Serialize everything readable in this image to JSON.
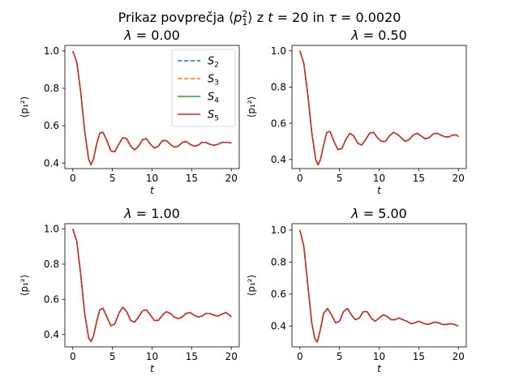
{
  "figure": {
    "title_prefix": "Prikaz povprečja ⟨",
    "title_mid": "⟩  z ",
    "title_t": "t",
    "title_eq1": " = 20 in ",
    "title_tau": "τ",
    "title_eq2": " = 0.0020"
  },
  "legend": {
    "entries": [
      {
        "label": "S",
        "sub": "2",
        "color": "#1f77b4",
        "style": "dashed"
      },
      {
        "label": "S",
        "sub": "3",
        "color": "#ff7f0e",
        "style": "dashed"
      },
      {
        "label": "S",
        "sub": "4",
        "color": "#2ca02c",
        "style": "solid"
      },
      {
        "label": "S",
        "sub": "5",
        "color": "#d62728",
        "style": "solid"
      }
    ]
  },
  "chart_data": [
    {
      "type": "line",
      "title_symbol": "λ",
      "title_value": " = 0.00",
      "xlabel": "t",
      "ylabel": "⟨p₁²⟩",
      "xlim": [
        -1,
        21
      ],
      "ylim": [
        0.37,
        1.03
      ],
      "xticks": [
        "0",
        "5",
        "10",
        "15",
        "20"
      ],
      "yticks": [
        "0.4",
        "0.6",
        "0.8",
        "1.0"
      ],
      "legend": "top-right",
      "x": [
        0,
        0.5,
        1.0,
        1.5,
        2.0,
        2.3,
        2.6,
        3.0,
        3.4,
        3.8,
        4.3,
        4.8,
        5.3,
        5.8,
        6.3,
        6.8,
        7.3,
        7.8,
        8.3,
        8.8,
        9.3,
        9.8,
        10.3,
        10.8,
        11.3,
        11.8,
        12.3,
        12.8,
        13.3,
        13.8,
        14.3,
        14.8,
        15.3,
        15.8,
        16.3,
        16.8,
        17.3,
        17.8,
        18.3,
        18.8,
        19.3,
        19.8,
        20.0
      ],
      "series": [
        {
          "name": "S_2",
          "values": [
            1.0,
            0.94,
            0.78,
            0.57,
            0.42,
            0.39,
            0.42,
            0.5,
            0.56,
            0.565,
            0.52,
            0.465,
            0.46,
            0.5,
            0.535,
            0.53,
            0.49,
            0.47,
            0.49,
            0.525,
            0.53,
            0.5,
            0.48,
            0.49,
            0.52,
            0.52,
            0.5,
            0.485,
            0.49,
            0.51,
            0.515,
            0.5,
            0.49,
            0.495,
            0.51,
            0.51,
            0.5,
            0.495,
            0.5,
            0.51,
            0.51,
            0.51,
            0.505
          ]
        },
        {
          "name": "S_3",
          "values": [
            1.0,
            0.94,
            0.78,
            0.57,
            0.42,
            0.39,
            0.42,
            0.5,
            0.56,
            0.565,
            0.52,
            0.465,
            0.46,
            0.5,
            0.535,
            0.53,
            0.49,
            0.47,
            0.49,
            0.525,
            0.53,
            0.5,
            0.48,
            0.49,
            0.52,
            0.52,
            0.5,
            0.485,
            0.49,
            0.51,
            0.515,
            0.5,
            0.49,
            0.495,
            0.51,
            0.51,
            0.5,
            0.495,
            0.5,
            0.51,
            0.51,
            0.51,
            0.505
          ]
        },
        {
          "name": "S_4",
          "values": [
            1.0,
            0.94,
            0.78,
            0.57,
            0.42,
            0.39,
            0.42,
            0.5,
            0.56,
            0.565,
            0.52,
            0.465,
            0.46,
            0.5,
            0.535,
            0.53,
            0.49,
            0.47,
            0.49,
            0.525,
            0.53,
            0.5,
            0.48,
            0.49,
            0.52,
            0.52,
            0.5,
            0.485,
            0.49,
            0.51,
            0.515,
            0.5,
            0.49,
            0.495,
            0.51,
            0.51,
            0.5,
            0.495,
            0.5,
            0.51,
            0.51,
            0.51,
            0.505
          ]
        },
        {
          "name": "S_5",
          "values": [
            1.0,
            0.94,
            0.78,
            0.57,
            0.42,
            0.39,
            0.42,
            0.5,
            0.56,
            0.565,
            0.52,
            0.465,
            0.46,
            0.5,
            0.535,
            0.53,
            0.49,
            0.47,
            0.49,
            0.525,
            0.53,
            0.5,
            0.48,
            0.49,
            0.52,
            0.52,
            0.5,
            0.485,
            0.49,
            0.51,
            0.515,
            0.5,
            0.49,
            0.495,
            0.51,
            0.51,
            0.5,
            0.495,
            0.5,
            0.51,
            0.51,
            0.51,
            0.505
          ]
        }
      ]
    },
    {
      "type": "line",
      "title_symbol": "λ",
      "title_value": " = 0.50",
      "xlabel": "t",
      "ylabel": "⟨p₁²⟩",
      "xlim": [
        -1,
        21
      ],
      "ylim": [
        0.35,
        1.03
      ],
      "xticks": [
        "0",
        "5",
        "10",
        "15",
        "20"
      ],
      "yticks": [
        "0.4",
        "0.6",
        "0.8",
        "1.0"
      ],
      "x": [
        0,
        0.5,
        1.0,
        1.5,
        2.0,
        2.3,
        2.6,
        3.0,
        3.4,
        3.8,
        4.3,
        4.8,
        5.3,
        5.8,
        6.3,
        6.8,
        7.3,
        7.8,
        8.3,
        8.8,
        9.3,
        9.8,
        10.3,
        10.8,
        11.3,
        11.8,
        12.3,
        12.8,
        13.3,
        13.8,
        14.3,
        14.8,
        15.3,
        15.8,
        16.3,
        16.8,
        17.3,
        17.8,
        18.3,
        18.8,
        19.3,
        19.8,
        20.0
      ],
      "series": [
        {
          "name": "S_2",
          "values": [
            1.0,
            0.93,
            0.76,
            0.55,
            0.4,
            0.37,
            0.4,
            0.48,
            0.55,
            0.555,
            0.5,
            0.455,
            0.46,
            0.51,
            0.545,
            0.53,
            0.49,
            0.48,
            0.51,
            0.545,
            0.55,
            0.52,
            0.5,
            0.5,
            0.53,
            0.55,
            0.54,
            0.52,
            0.5,
            0.51,
            0.535,
            0.545,
            0.53,
            0.515,
            0.52,
            0.54,
            0.545,
            0.535,
            0.525,
            0.525,
            0.535,
            0.535,
            0.525
          ]
        },
        {
          "name": "S_3",
          "values": [
            1.0,
            0.93,
            0.76,
            0.55,
            0.4,
            0.37,
            0.4,
            0.48,
            0.55,
            0.555,
            0.5,
            0.455,
            0.46,
            0.51,
            0.545,
            0.53,
            0.49,
            0.48,
            0.51,
            0.545,
            0.55,
            0.52,
            0.5,
            0.5,
            0.53,
            0.55,
            0.54,
            0.52,
            0.5,
            0.51,
            0.535,
            0.545,
            0.53,
            0.515,
            0.52,
            0.54,
            0.545,
            0.535,
            0.525,
            0.525,
            0.535,
            0.535,
            0.525
          ]
        },
        {
          "name": "S_4",
          "values": [
            1.0,
            0.93,
            0.76,
            0.55,
            0.4,
            0.37,
            0.4,
            0.48,
            0.55,
            0.555,
            0.5,
            0.455,
            0.46,
            0.51,
            0.545,
            0.53,
            0.49,
            0.48,
            0.51,
            0.545,
            0.55,
            0.52,
            0.5,
            0.5,
            0.53,
            0.55,
            0.54,
            0.52,
            0.5,
            0.51,
            0.535,
            0.545,
            0.53,
            0.515,
            0.52,
            0.54,
            0.545,
            0.535,
            0.525,
            0.525,
            0.535,
            0.535,
            0.525
          ]
        },
        {
          "name": "S_5",
          "values": [
            1.0,
            0.93,
            0.76,
            0.55,
            0.4,
            0.37,
            0.4,
            0.48,
            0.55,
            0.555,
            0.5,
            0.455,
            0.46,
            0.51,
            0.545,
            0.53,
            0.49,
            0.48,
            0.51,
            0.545,
            0.55,
            0.52,
            0.5,
            0.5,
            0.53,
            0.55,
            0.54,
            0.52,
            0.5,
            0.51,
            0.535,
            0.545,
            0.53,
            0.515,
            0.52,
            0.54,
            0.545,
            0.535,
            0.525,
            0.525,
            0.535,
            0.535,
            0.525
          ]
        }
      ]
    },
    {
      "type": "line",
      "title_symbol": "λ",
      "title_value": " = 1.00",
      "xlabel": "t",
      "ylabel": "⟨p₁²⟩",
      "xlim": [
        -1,
        21
      ],
      "ylim": [
        0.33,
        1.03
      ],
      "xticks": [
        "0",
        "5",
        "10",
        "15",
        "20"
      ],
      "yticks": [
        "0.4",
        "0.6",
        "0.8",
        "1.0"
      ],
      "x": [
        0,
        0.5,
        1.0,
        1.5,
        2.0,
        2.3,
        2.6,
        3.0,
        3.4,
        3.8,
        4.3,
        4.8,
        5.3,
        5.8,
        6.3,
        6.8,
        7.3,
        7.8,
        8.3,
        8.8,
        9.3,
        9.8,
        10.3,
        10.8,
        11.3,
        11.8,
        12.3,
        12.8,
        13.3,
        13.8,
        14.3,
        14.8,
        15.3,
        15.8,
        16.3,
        16.8,
        17.3,
        17.8,
        18.3,
        18.8,
        19.3,
        19.8,
        20.0
      ],
      "series": [
        {
          "name": "S_2",
          "values": [
            1.0,
            0.93,
            0.74,
            0.52,
            0.38,
            0.36,
            0.39,
            0.47,
            0.54,
            0.55,
            0.5,
            0.45,
            0.46,
            0.52,
            0.555,
            0.53,
            0.48,
            0.47,
            0.5,
            0.535,
            0.54,
            0.51,
            0.48,
            0.48,
            0.51,
            0.53,
            0.52,
            0.5,
            0.49,
            0.5,
            0.52,
            0.525,
            0.51,
            0.5,
            0.505,
            0.52,
            0.52,
            0.51,
            0.505,
            0.515,
            0.525,
            0.51,
            0.5
          ]
        },
        {
          "name": "S_3",
          "values": [
            1.0,
            0.93,
            0.74,
            0.52,
            0.38,
            0.36,
            0.39,
            0.47,
            0.54,
            0.55,
            0.5,
            0.45,
            0.46,
            0.52,
            0.555,
            0.53,
            0.48,
            0.47,
            0.5,
            0.535,
            0.54,
            0.51,
            0.48,
            0.48,
            0.51,
            0.53,
            0.52,
            0.5,
            0.49,
            0.5,
            0.52,
            0.525,
            0.51,
            0.5,
            0.505,
            0.52,
            0.52,
            0.51,
            0.505,
            0.515,
            0.525,
            0.51,
            0.5
          ]
        },
        {
          "name": "S_4",
          "values": [
            1.0,
            0.93,
            0.74,
            0.52,
            0.38,
            0.36,
            0.39,
            0.47,
            0.54,
            0.55,
            0.5,
            0.45,
            0.46,
            0.52,
            0.555,
            0.53,
            0.48,
            0.47,
            0.5,
            0.535,
            0.54,
            0.51,
            0.48,
            0.48,
            0.51,
            0.53,
            0.52,
            0.5,
            0.49,
            0.5,
            0.52,
            0.525,
            0.51,
            0.5,
            0.505,
            0.52,
            0.52,
            0.51,
            0.505,
            0.515,
            0.525,
            0.51,
            0.5
          ]
        },
        {
          "name": "S_5",
          "values": [
            1.0,
            0.93,
            0.74,
            0.52,
            0.38,
            0.36,
            0.39,
            0.47,
            0.54,
            0.55,
            0.5,
            0.45,
            0.46,
            0.52,
            0.555,
            0.53,
            0.48,
            0.47,
            0.5,
            0.535,
            0.54,
            0.51,
            0.48,
            0.48,
            0.51,
            0.53,
            0.52,
            0.5,
            0.49,
            0.5,
            0.52,
            0.525,
            0.51,
            0.5,
            0.505,
            0.52,
            0.52,
            0.51,
            0.505,
            0.515,
            0.525,
            0.51,
            0.5
          ]
        }
      ]
    },
    {
      "type": "line",
      "title_symbol": "λ",
      "title_value": " = 5.00",
      "xlabel": "t",
      "ylabel": "⟨p₁²⟩",
      "xlim": [
        -1,
        21
      ],
      "ylim": [
        0.27,
        1.04
      ],
      "xticks": [
        "0",
        "5",
        "10",
        "15",
        "20"
      ],
      "yticks": [
        "0.4",
        "0.6",
        "0.8",
        "1.0"
      ],
      "x": [
        0,
        0.5,
        1.0,
        1.5,
        1.9,
        2.2,
        2.6,
        3.0,
        3.5,
        4.0,
        4.5,
        5.0,
        5.5,
        6.0,
        6.5,
        7.0,
        7.5,
        8.0,
        8.5,
        9.0,
        9.5,
        10.0,
        10.5,
        11.0,
        11.5,
        12.0,
        12.5,
        13.0,
        13.5,
        14.0,
        14.5,
        15.0,
        15.5,
        16.0,
        16.5,
        17.0,
        17.5,
        18.0,
        18.5,
        19.0,
        19.5,
        20.0
      ],
      "series": [
        {
          "name": "S_2",
          "values": [
            1.0,
            0.9,
            0.66,
            0.42,
            0.32,
            0.3,
            0.38,
            0.48,
            0.51,
            0.47,
            0.42,
            0.43,
            0.49,
            0.51,
            0.47,
            0.44,
            0.45,
            0.49,
            0.49,
            0.45,
            0.43,
            0.45,
            0.47,
            0.46,
            0.44,
            0.44,
            0.45,
            0.44,
            0.43,
            0.415,
            0.42,
            0.43,
            0.42,
            0.41,
            0.415,
            0.425,
            0.42,
            0.41,
            0.41,
            0.415,
            0.41,
            0.4
          ]
        },
        {
          "name": "S_3",
          "values": [
            1.0,
            0.9,
            0.66,
            0.42,
            0.32,
            0.3,
            0.38,
            0.48,
            0.51,
            0.47,
            0.42,
            0.43,
            0.49,
            0.51,
            0.47,
            0.44,
            0.45,
            0.49,
            0.49,
            0.45,
            0.43,
            0.45,
            0.47,
            0.46,
            0.44,
            0.44,
            0.45,
            0.44,
            0.43,
            0.415,
            0.42,
            0.43,
            0.42,
            0.41,
            0.415,
            0.425,
            0.42,
            0.41,
            0.41,
            0.415,
            0.41,
            0.4
          ]
        },
        {
          "name": "S_4",
          "values": [
            1.0,
            0.9,
            0.66,
            0.42,
            0.32,
            0.3,
            0.38,
            0.48,
            0.51,
            0.47,
            0.42,
            0.43,
            0.49,
            0.51,
            0.47,
            0.44,
            0.45,
            0.49,
            0.49,
            0.45,
            0.43,
            0.45,
            0.47,
            0.46,
            0.44,
            0.44,
            0.45,
            0.44,
            0.43,
            0.415,
            0.42,
            0.43,
            0.42,
            0.41,
            0.415,
            0.425,
            0.42,
            0.41,
            0.41,
            0.415,
            0.41,
            0.4
          ]
        },
        {
          "name": "S_5",
          "values": [
            1.0,
            0.9,
            0.66,
            0.42,
            0.32,
            0.3,
            0.38,
            0.48,
            0.51,
            0.47,
            0.42,
            0.43,
            0.49,
            0.51,
            0.47,
            0.44,
            0.45,
            0.49,
            0.49,
            0.45,
            0.43,
            0.45,
            0.47,
            0.46,
            0.44,
            0.44,
            0.45,
            0.44,
            0.43,
            0.415,
            0.42,
            0.43,
            0.42,
            0.41,
            0.415,
            0.425,
            0.42,
            0.41,
            0.41,
            0.415,
            0.41,
            0.4
          ]
        }
      ]
    }
  ]
}
